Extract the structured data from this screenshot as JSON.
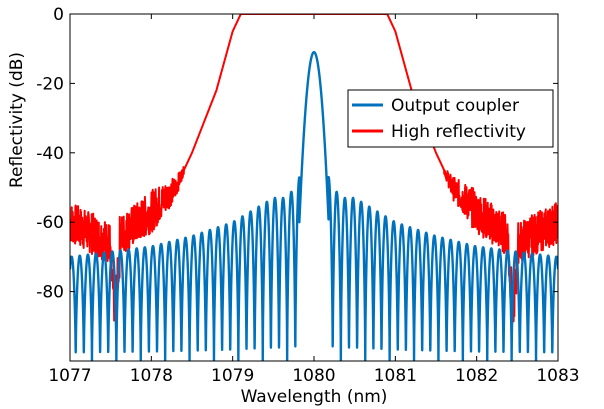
{
  "chart_data": {
    "type": "line",
    "title": "",
    "xlabel": "Wavelength (nm)",
    "ylabel": "Reflectivity (dB)",
    "xlim": [
      1077,
      1083
    ],
    "ylim": [
      -100,
      0
    ],
    "xticks": [
      1077,
      1078,
      1079,
      1080,
      1081,
      1082,
      1083
    ],
    "yticks": [
      0,
      -20,
      -40,
      -60,
      -80
    ],
    "legend_position": "right",
    "grid": false,
    "series": [
      {
        "name": "Output coupler",
        "color": "#0072BD",
        "description_points": {
          "peak": {
            "x": 1080.0,
            "y": -11
          },
          "first_sidelobes": [
            {
              "x": 1079.72,
              "y": -47
            },
            {
              "x": 1080.28,
              "y": -47
            }
          ],
          "envelope": [
            {
              "x": 1077.0,
              "y": -70
            },
            {
              "x": 1078.0,
              "y": -67
            },
            {
              "x": 1078.5,
              "y": -64
            },
            {
              "x": 1079.0,
              "y": -60
            },
            {
              "x": 1079.5,
              "y": -53
            },
            {
              "x": 1080.5,
              "y": -53
            },
            {
              "x": 1081.0,
              "y": -60
            },
            {
              "x": 1081.5,
              "y": -64
            },
            {
              "x": 1082.0,
              "y": -67
            },
            {
              "x": 1083.0,
              "y": -70
            }
          ],
          "null_depth": -100
        }
      },
      {
        "name": "High reflectivity",
        "color": "#FF0000",
        "description_points": {
          "flat_top": [
            {
              "x": 1079.05,
              "y": 0
            },
            {
              "x": 1080.9,
              "y": 0
            }
          ],
          "edges": [
            {
              "x": 1077.0,
              "y": -60
            },
            {
              "x": 1077.5,
              "y": -66
            },
            {
              "x": 1078.0,
              "y": -57
            },
            {
              "x": 1078.3,
              "y": -50
            },
            {
              "x": 1078.5,
              "y": -40
            },
            {
              "x": 1078.8,
              "y": -22
            },
            {
              "x": 1079.0,
              "y": -5
            },
            {
              "x": 1079.1,
              "y": 0
            },
            {
              "x": 1080.9,
              "y": 0
            },
            {
              "x": 1081.0,
              "y": -5
            },
            {
              "x": 1081.2,
              "y": -22
            },
            {
              "x": 1081.5,
              "y": -40
            },
            {
              "x": 1081.7,
              "y": -50
            },
            {
              "x": 1082.0,
              "y": -57
            },
            {
              "x": 1082.5,
              "y": -66
            },
            {
              "x": 1083.0,
              "y": -60
            }
          ],
          "dips": [
            {
              "x": 1077.55,
              "y": -85
            },
            {
              "x": 1082.45,
              "y": -85
            }
          ]
        }
      }
    ]
  }
}
